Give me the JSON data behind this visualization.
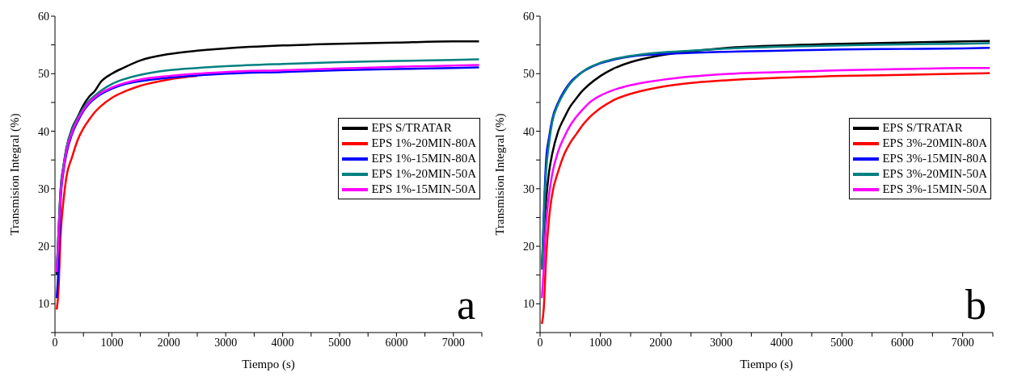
{
  "chart_data": [
    {
      "type": "line",
      "xlabel": "Tiempo (s)",
      "ylabel": "Transmision Integral (%)",
      "annotations": [
        "a"
      ],
      "legend": "center right",
      "marker": "none",
      "line_style": "solid",
      "xlim": [
        0,
        7500
      ],
      "ylim": [
        5,
        60
      ],
      "xticks": [
        0,
        {
          "value": 500,
          "label": null
        },
        1000,
        {
          "value": 1500,
          "label": null
        },
        2000,
        {
          "value": 2500,
          "label": null
        },
        3000,
        {
          "value": 3500,
          "label": null
        },
        4000,
        {
          "value": 4500,
          "label": null
        },
        5000,
        {
          "value": 5500,
          "label": null
        },
        6000,
        {
          "value": 6500,
          "label": null
        },
        7000,
        {
          "value": 7500,
          "label": null
        }
      ],
      "yticks": [
        {
          "value": 5,
          "label": null
        },
        10,
        {
          "value": 15,
          "label": null
        },
        20,
        {
          "value": 25,
          "label": null
        },
        30,
        {
          "value": 35,
          "label": null
        },
        40,
        {
          "value": 45,
          "label": null
        },
        50,
        {
          "value": 55,
          "label": null
        },
        60
      ],
      "x": [
        30,
        60,
        100,
        150,
        200,
        300,
        400,
        500,
        600,
        700,
        800,
        1000,
        1200,
        1500,
        2000,
        2500,
        3000,
        4000,
        5000,
        6000,
        7000,
        7450
      ],
      "series": [
        {
          "name": "EPS S/TRATAR",
          "color": "#000000",
          "values": [
            15,
            22,
            30,
            34,
            37,
            40.5,
            42.5,
            44.5,
            46,
            47,
            48.5,
            50,
            51,
            52.3,
            53.4,
            54,
            54.4,
            54.9,
            55.2,
            55.4,
            55.6,
            55.6
          ]
        },
        {
          "name": "EPS 1%-20MIN-80A",
          "color": "#ff0000",
          "values": [
            9,
            12,
            22,
            28,
            32,
            35.5,
            38.5,
            40.5,
            42,
            43.3,
            44.3,
            45.8,
            46.8,
            47.9,
            49,
            49.6,
            null,
            null,
            null,
            null,
            null,
            null
          ]
        },
        {
          "name": "EPS 1%-15MIN-80A",
          "color": "#0000ff",
          "values": [
            11,
            16,
            28,
            33,
            36,
            39.5,
            41.7,
            43.5,
            44.8,
            45.7,
            46.4,
            47.4,
            48.1,
            48.7,
            49.3,
            49.7,
            50,
            50.3,
            50.6,
            50.8,
            51,
            51.1
          ]
        },
        {
          "name": "EPS 1%-20MIN-50A",
          "color": "#008080",
          "values": [
            16,
            22,
            30,
            34,
            37,
            40.3,
            42.3,
            44,
            45.3,
            46.2,
            47,
            48.2,
            49,
            49.8,
            50.6,
            51,
            51.3,
            51.7,
            52,
            52.2,
            52.4,
            52.5
          ]
        },
        {
          "name": "EPS 1%-15MIN-50A",
          "color": "#ff00ff",
          "values": [
            15.5,
            21,
            29,
            33.5,
            36.5,
            39.8,
            42,
            43.7,
            45,
            45.9,
            46.6,
            47.6,
            48.3,
            49,
            49.6,
            50,
            50.3,
            50.6,
            50.9,
            51.2,
            51.4,
            51.5
          ]
        }
      ]
    },
    {
      "type": "line",
      "xlabel": "Tiempo (s)",
      "ylabel": "Transmision Integral (%)",
      "annotations": [
        "b"
      ],
      "legend": "center right",
      "marker": "none",
      "line_style": "solid",
      "xlim": [
        0,
        7500
      ],
      "ylim": [
        5,
        60
      ],
      "xticks": [
        0,
        {
          "value": 500,
          "label": null
        },
        1000,
        {
          "value": 1500,
          "label": null
        },
        2000,
        {
          "value": 2500,
          "label": null
        },
        3000,
        {
          "value": 3500,
          "label": null
        },
        4000,
        {
          "value": 4500,
          "label": null
        },
        5000,
        {
          "value": 5500,
          "label": null
        },
        6000,
        {
          "value": 6500,
          "label": null
        },
        7000,
        {
          "value": 7500,
          "label": null
        }
      ],
      "yticks": [
        {
          "value": 5,
          "label": null
        },
        10,
        {
          "value": 15,
          "label": null
        },
        20,
        {
          "value": 25,
          "label": null
        },
        30,
        {
          "value": 35,
          "label": null
        },
        40,
        {
          "value": 45,
          "label": null
        },
        50,
        {
          "value": 55,
          "label": null
        },
        60
      ],
      "x": [
        30,
        60,
        100,
        150,
        200,
        300,
        400,
        500,
        600,
        700,
        800,
        1000,
        1200,
        1500,
        2000,
        2500,
        3000,
        4000,
        5000,
        6000,
        7000,
        7450
      ],
      "series": [
        {
          "name": "EPS S/TRATAR",
          "color": "#000000",
          "values": [
            16,
            22,
            28,
            33,
            36,
            40,
            42.3,
            44.3,
            45.7,
            47,
            48,
            49.6,
            50.8,
            52,
            53.2,
            53.9,
            54.4,
            54.9,
            55.2,
            55.4,
            55.6,
            55.7
          ]
        },
        {
          "name": "EPS 3%-20MIN-80A",
          "color": "#ff0000",
          "values": [
            6.5,
            9,
            18,
            25,
            29,
            33,
            36,
            38,
            39.5,
            41,
            42.2,
            44,
            45.3,
            46.5,
            47.7,
            48.4,
            48.8,
            49.3,
            49.6,
            49.8,
            50,
            50.1
          ]
        },
        {
          "name": "EPS 3%-15MIN-80A",
          "color": "#0000ff",
          "values": [
            16,
            25,
            35,
            39,
            42,
            45,
            47,
            48.5,
            49.5,
            50.3,
            50.9,
            51.8,
            52.4,
            53,
            53.4,
            53.6,
            53.8,
            54,
            54.2,
            54.3,
            54.4,
            54.5
          ]
        },
        {
          "name": "EPS 3%-20MIN-50A",
          "color": "#008080",
          "values": [
            16,
            24,
            33,
            38,
            41.5,
            44.7,
            46.7,
            48.3,
            49.4,
            50.3,
            51,
            51.9,
            52.5,
            53.1,
            53.7,
            54,
            54.3,
            54.7,
            54.9,
            55.1,
            55.2,
            55.3
          ]
        },
        {
          "name": "EPS 3%-15MIN-50A",
          "color": "#ff00ff",
          "values": [
            11,
            16,
            24,
            29,
            32.5,
            36.5,
            39,
            41,
            42.5,
            43.7,
            44.8,
            46.2,
            47.1,
            48,
            48.9,
            49.5,
            49.9,
            50.3,
            50.6,
            50.8,
            51,
            51
          ]
        }
      ]
    }
  ]
}
